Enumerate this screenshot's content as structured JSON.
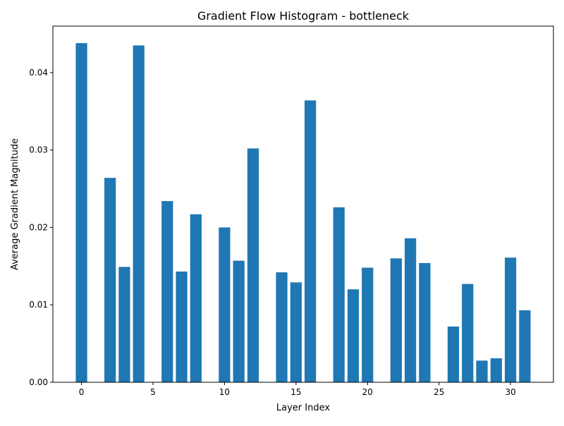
{
  "chart_data": {
    "type": "bar",
    "title": "Gradient Flow Histogram - bottleneck",
    "xlabel": "Layer Index",
    "ylabel": "Average Gradient Magnitude",
    "x": [
      0,
      2,
      3,
      4,
      6,
      7,
      8,
      10,
      11,
      12,
      14,
      15,
      16,
      18,
      19,
      20,
      22,
      23,
      24,
      26,
      27,
      28,
      29,
      30,
      31
    ],
    "values": [
      0.0438,
      0.0264,
      0.0149,
      0.0435,
      0.0234,
      0.0143,
      0.0217,
      0.02,
      0.0157,
      0.0302,
      0.0142,
      0.0129,
      0.0364,
      0.0226,
      0.012,
      0.0148,
      0.016,
      0.0186,
      0.0154,
      0.0072,
      0.0127,
      0.0028,
      0.0031,
      0.0161,
      0.0093
    ],
    "xlim": [
      -2.0,
      33.0
    ],
    "ylim": [
      0,
      0.046
    ],
    "xticks": [
      0,
      5,
      10,
      15,
      20,
      25,
      30
    ],
    "xtick_labels": [
      "0",
      "5",
      "10",
      "15",
      "20",
      "25",
      "30"
    ],
    "yticks": [
      0.0,
      0.01,
      0.02,
      0.03,
      0.04
    ],
    "ytick_labels": [
      "0.00",
      "0.01",
      "0.02",
      "0.03",
      "0.04"
    ],
    "grid": false,
    "bar_color": "#1f77b4"
  }
}
